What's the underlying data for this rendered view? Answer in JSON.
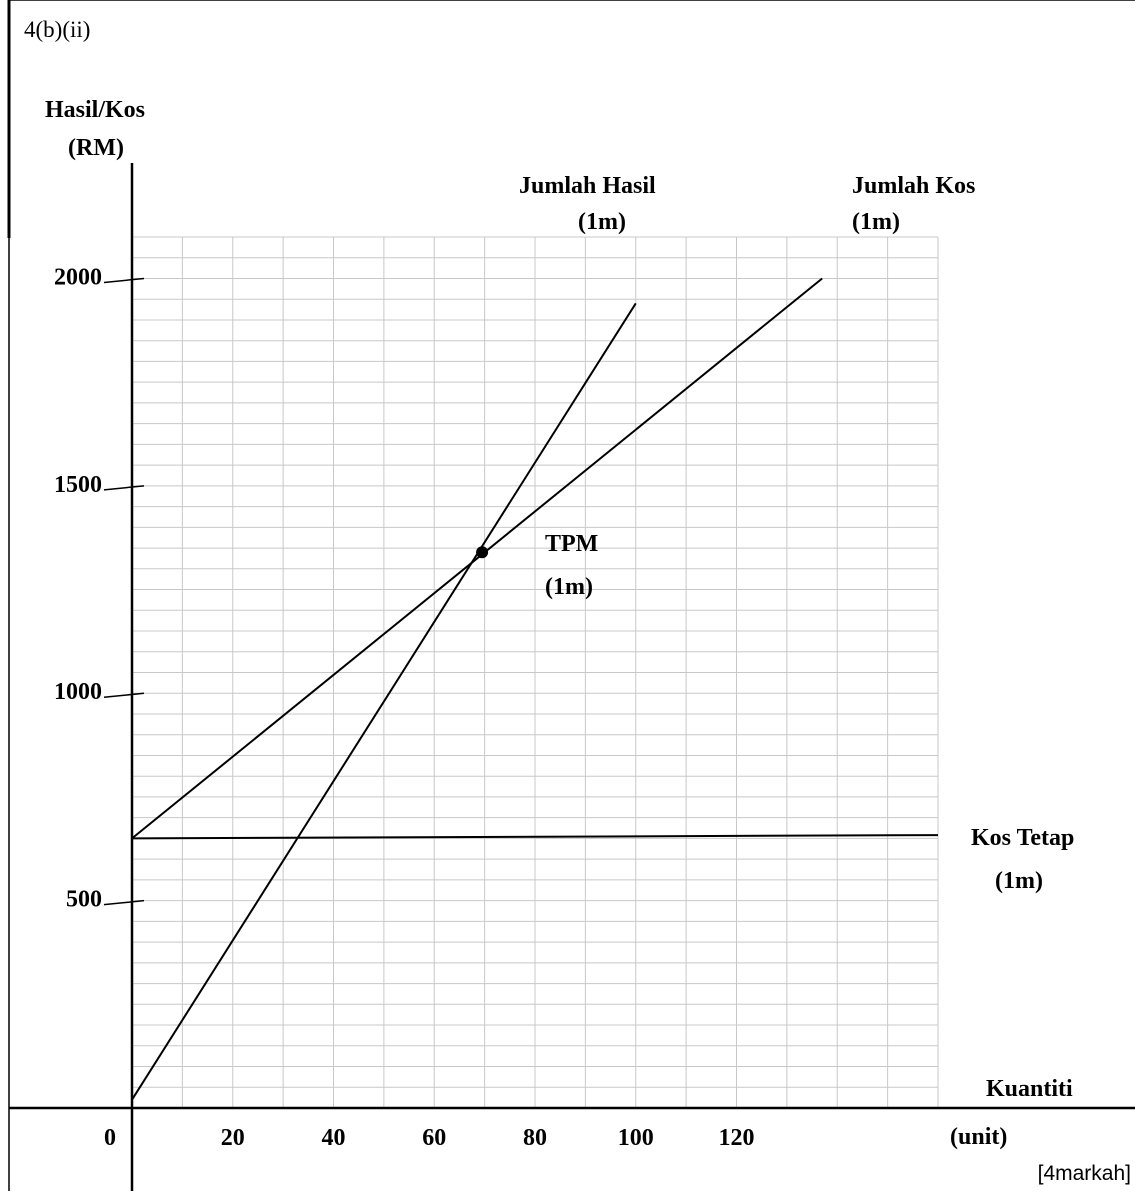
{
  "question_ref": "4(b)(ii)",
  "marks_note": "[4markah]",
  "chart_data": {
    "type": "line",
    "y_axis_label_line1": "Hasil/Kos",
    "y_axis_label_line2": "(RM)",
    "x_axis_label_line1": "Kuantiti",
    "x_axis_label_line2": "(unit)",
    "x_ticks": [
      "0",
      "20",
      "40",
      "60",
      "80",
      "100",
      "120"
    ],
    "x_tick_values": [
      0,
      20,
      40,
      60,
      80,
      100,
      120
    ],
    "y_ticks": [
      "2000",
      "1500",
      "1000",
      "500"
    ],
    "y_tick_values": [
      2000,
      1500,
      1000,
      500
    ],
    "xlim": [
      0,
      160
    ],
    "ylim": [
      0,
      2100
    ],
    "grid": true,
    "series": [
      {
        "name": "Jumlah Hasil",
        "mark": "(1m)",
        "color": "#000000",
        "x": [
          0,
          100
        ],
        "y": [
          20,
          1940
        ]
      },
      {
        "name": "Jumlah Kos",
        "mark": "(1m)",
        "color": "#000000",
        "x": [
          0,
          137
        ],
        "y": [
          650,
          2000
        ]
      },
      {
        "name": "Kos Tetap",
        "mark": "(1m)",
        "color": "#000000",
        "x": [
          0,
          160
        ],
        "y": [
          650,
          658
        ]
      }
    ],
    "annotations": [
      {
        "label": "TPM",
        "mark": "(1m)",
        "x": 69.5,
        "y": 1340
      }
    ]
  }
}
